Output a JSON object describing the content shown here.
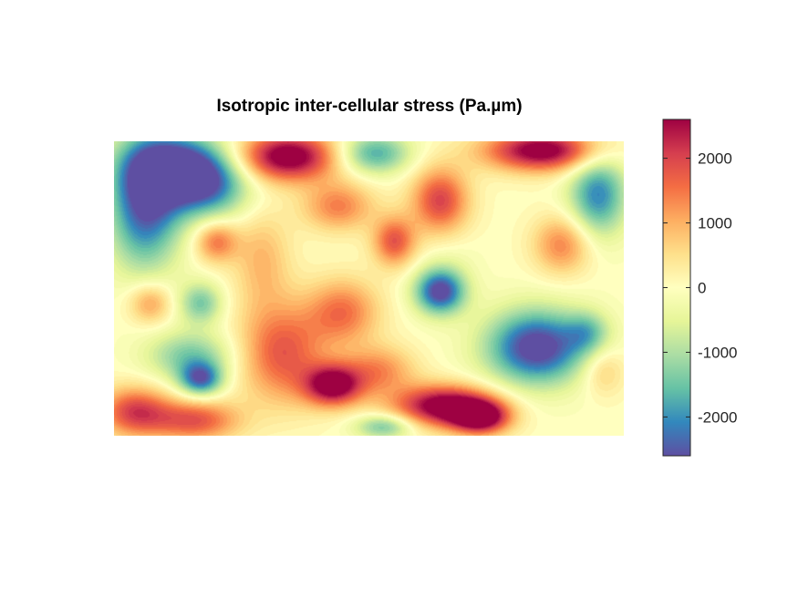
{
  "chart_data": {
    "type": "heatmap",
    "title": "Isotropic inter-cellular stress (Pa.µm)",
    "xlabel": "",
    "ylabel": "",
    "axes_visible": false,
    "grid": false,
    "colormap": "spectral (diverging: purple-blue-teal-green-yellow-cream-orange-red-crimson)",
    "colormap_stops": [
      "#5e4fa2",
      "#3288bd",
      "#66c2a5",
      "#abdda4",
      "#e6f598",
      "#ffffbf",
      "#fee08b",
      "#fdae61",
      "#f46d43",
      "#d53e4f",
      "#9e0142"
    ],
    "clim": [
      -2600,
      2600
    ],
    "colorbar": {
      "location": "right",
      "ticks": [
        -2000,
        -1000,
        0,
        1000,
        2000
      ],
      "tick_labels": [
        "-2000",
        "-1000",
        "0",
        "1000",
        "2000"
      ]
    },
    "field_extent": {
      "x": [
        0,
        1
      ],
      "y": [
        0,
        1
      ]
    },
    "field_blobs": [
      {
        "x": 0.06,
        "y": 0.78,
        "sx": 0.05,
        "sy": 0.15,
        "v": -2500
      },
      {
        "x": 0.12,
        "y": 0.92,
        "sx": 0.07,
        "sy": 0.08,
        "v": -2400
      },
      {
        "x": 0.18,
        "y": 0.85,
        "sx": 0.06,
        "sy": 0.08,
        "v": -2000
      },
      {
        "x": 0.34,
        "y": 0.95,
        "sx": 0.07,
        "sy": 0.06,
        "v": 3000
      },
      {
        "x": 0.51,
        "y": 0.96,
        "sx": 0.05,
        "sy": 0.05,
        "v": -1800
      },
      {
        "x": 0.44,
        "y": 0.78,
        "sx": 0.05,
        "sy": 0.06,
        "v": 1400
      },
      {
        "x": 0.64,
        "y": 0.8,
        "sx": 0.04,
        "sy": 0.08,
        "v": 2000
      },
      {
        "x": 0.84,
        "y": 0.97,
        "sx": 0.08,
        "sy": 0.05,
        "v": 2900
      },
      {
        "x": 0.95,
        "y": 0.82,
        "sx": 0.04,
        "sy": 0.1,
        "v": -2100
      },
      {
        "x": 0.66,
        "y": 0.6,
        "sx": 0.04,
        "sy": 0.06,
        "v": -200
      },
      {
        "x": 0.88,
        "y": 0.65,
        "sx": 0.04,
        "sy": 0.07,
        "v": 1400
      },
      {
        "x": 0.2,
        "y": 0.66,
        "sx": 0.03,
        "sy": 0.05,
        "v": 1500
      },
      {
        "x": 0.29,
        "y": 0.6,
        "sx": 0.04,
        "sy": 0.12,
        "v": 900
      },
      {
        "x": 0.55,
        "y": 0.66,
        "sx": 0.03,
        "sy": 0.06,
        "v": 1800
      },
      {
        "x": 0.07,
        "y": 0.45,
        "sx": 0.03,
        "sy": 0.05,
        "v": 1200
      },
      {
        "x": 0.17,
        "y": 0.45,
        "sx": 0.03,
        "sy": 0.05,
        "v": -1400
      },
      {
        "x": 0.15,
        "y": 0.27,
        "sx": 0.06,
        "sy": 0.06,
        "v": -1400
      },
      {
        "x": 0.17,
        "y": 0.19,
        "sx": 0.03,
        "sy": 0.04,
        "v": -2200
      },
      {
        "x": 0.64,
        "y": 0.49,
        "sx": 0.035,
        "sy": 0.055,
        "v": -2800
      },
      {
        "x": 0.83,
        "y": 0.3,
        "sx": 0.07,
        "sy": 0.09,
        "v": -2900
      },
      {
        "x": 0.04,
        "y": 0.08,
        "sx": 0.05,
        "sy": 0.06,
        "v": 2000
      },
      {
        "x": 0.16,
        "y": 0.05,
        "sx": 0.06,
        "sy": 0.05,
        "v": 1800
      },
      {
        "x": 0.33,
        "y": 0.28,
        "sx": 0.06,
        "sy": 0.12,
        "v": 1800
      },
      {
        "x": 0.43,
        "y": 0.17,
        "sx": 0.04,
        "sy": 0.05,
        "v": 2800
      },
      {
        "x": 0.45,
        "y": 0.42,
        "sx": 0.05,
        "sy": 0.08,
        "v": 1500
      },
      {
        "x": 0.52,
        "y": 0.22,
        "sx": 0.05,
        "sy": 0.06,
        "v": 1300
      },
      {
        "x": 0.65,
        "y": 0.1,
        "sx": 0.07,
        "sy": 0.05,
        "v": 3000
      },
      {
        "x": 0.72,
        "y": 0.06,
        "sx": 0.04,
        "sy": 0.04,
        "v": 2700
      },
      {
        "x": 0.96,
        "y": 0.22,
        "sx": 0.03,
        "sy": 0.06,
        "v": 800
      },
      {
        "x": 0.93,
        "y": 0.35,
        "sx": 0.03,
        "sy": 0.05,
        "v": -1100
      },
      {
        "x": 0.53,
        "y": 0.03,
        "sx": 0.04,
        "sy": 0.03,
        "v": -1500
      }
    ]
  }
}
